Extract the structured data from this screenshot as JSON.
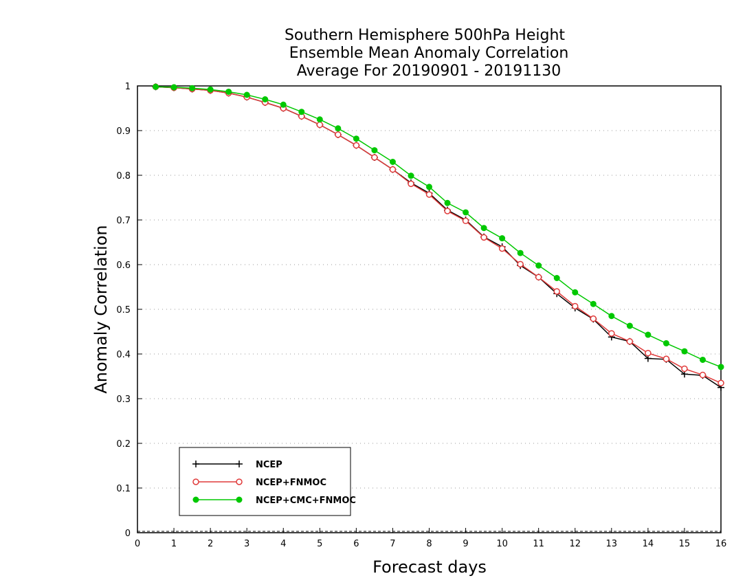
{
  "chart_data": {
    "type": "line",
    "title_lines": [
      "Southern Hemisphere 500hPa Height",
      "Ensemble Mean Anomaly Correlation",
      "Average For 20190901 - 20191130"
    ],
    "xlabel": "Forecast days",
    "ylabel": "Anomaly Correlation",
    "xlim": [
      0,
      16
    ],
    "ylim": [
      0,
      1
    ],
    "x_ticks": [
      "0",
      "1",
      "2",
      "3",
      "4",
      "5",
      "6",
      "7",
      "8",
      "9",
      "10",
      "11",
      "12",
      "13",
      "14",
      "15",
      "16"
    ],
    "y_ticks": [
      "0",
      "0.1",
      "0.2",
      "0.3",
      "0.4",
      "0.5",
      "0.6",
      "0.7",
      "0.8",
      "0.9",
      "1"
    ],
    "grid": "horizontal dotted",
    "legend_position": "bottom-left",
    "x": [
      0.5,
      1,
      1.5,
      2,
      2.5,
      3,
      3.5,
      4,
      4.5,
      5,
      5.5,
      6,
      6.5,
      7,
      7.5,
      8,
      8.5,
      9,
      9.5,
      10,
      10.5,
      11,
      11.5,
      12,
      12.5,
      13,
      13.5,
      14,
      14.5,
      15,
      15.5,
      16
    ],
    "series": [
      {
        "name": "NCEP",
        "color": "#000000",
        "marker": "plus",
        "values": [
          0.998,
          0.996,
          0.993,
          0.99,
          0.984,
          0.975,
          0.963,
          0.95,
          0.932,
          0.913,
          0.891,
          0.867,
          0.84,
          0.813,
          0.783,
          0.76,
          0.722,
          0.7,
          0.662,
          0.64,
          0.598,
          0.572,
          0.535,
          0.503,
          0.478,
          0.438,
          0.428,
          0.39,
          0.388,
          0.355,
          0.352,
          0.325
        ]
      },
      {
        "name": "NCEP+FNMOC",
        "color": "#e03a3a",
        "marker": "open-circle",
        "values": [
          0.998,
          0.996,
          0.993,
          0.99,
          0.984,
          0.975,
          0.963,
          0.95,
          0.932,
          0.913,
          0.891,
          0.867,
          0.84,
          0.813,
          0.781,
          0.757,
          0.72,
          0.698,
          0.661,
          0.636,
          0.601,
          0.572,
          0.54,
          0.507,
          0.479,
          0.446,
          0.428,
          0.402,
          0.389,
          0.367,
          0.353,
          0.335
        ]
      },
      {
        "name": "NCEP+CMC+FNMOC",
        "color": "#00c800",
        "marker": "filled-circle",
        "values": [
          0.998,
          0.997,
          0.995,
          0.992,
          0.987,
          0.98,
          0.97,
          0.958,
          0.942,
          0.925,
          0.905,
          0.882,
          0.856,
          0.83,
          0.799,
          0.774,
          0.738,
          0.717,
          0.682,
          0.659,
          0.626,
          0.598,
          0.57,
          0.538,
          0.512,
          0.485,
          0.463,
          0.443,
          0.424,
          0.406,
          0.387,
          0.371
        ]
      }
    ]
  }
}
